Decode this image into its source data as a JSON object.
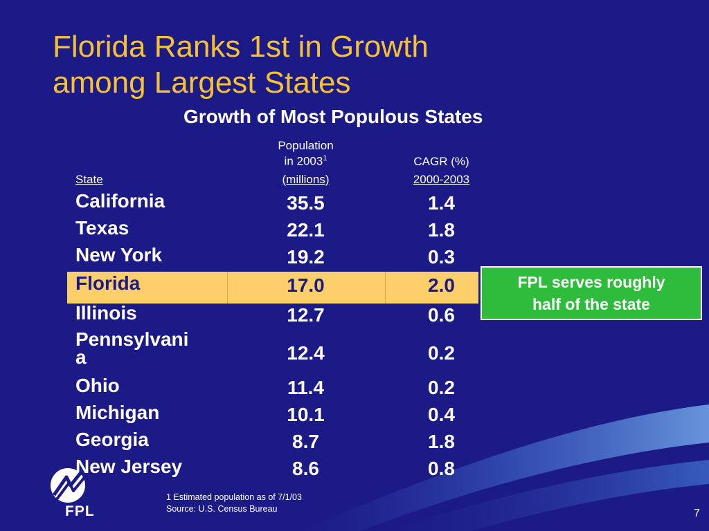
{
  "slide": {
    "title_line1": "Florida Ranks 1st in Growth",
    "title_line2": "among Largest States",
    "subtitle": "Growth of Most Populous States",
    "page_number": "7",
    "logo_text": "FPL"
  },
  "table": {
    "headers": {
      "state": "State",
      "pop_line1": "Population",
      "pop_line2": "in 2003",
      "pop_sup": "1",
      "pop_line3": "(millions)",
      "cagr_line1": "CAGR (%)",
      "cagr_line2": "2000-2003"
    },
    "rows": [
      {
        "state": "California",
        "population": "35.5",
        "cagr": "1.4"
      },
      {
        "state": "Texas",
        "population": "22.1",
        "cagr": "1.8"
      },
      {
        "state": "New York",
        "population": "19.2",
        "cagr": "0.3"
      },
      {
        "state": "Florida",
        "population": "17.0",
        "cagr": "2.0"
      },
      {
        "state": "Illinois",
        "population": "12.7",
        "cagr": "0.6"
      },
      {
        "state_line1": "Pennsylvani",
        "state_line2": "a",
        "population": "12.4",
        "cagr": "0.2"
      },
      {
        "state": "Ohio",
        "population": "11.4",
        "cagr": "0.2"
      },
      {
        "state": "Michigan",
        "population": "10.1",
        "cagr": "0.4"
      },
      {
        "state": "Georgia",
        "population": "8.7",
        "cagr": "1.8"
      },
      {
        "state": "New Jersey",
        "population": "8.6",
        "cagr": "0.8"
      }
    ]
  },
  "callout": {
    "line1": "FPL serves roughly",
    "line2": "half of the state"
  },
  "footnote": {
    "line1": "1 Estimated population as of 7/1/03",
    "line2": "Source: U.S. Census Bureau"
  },
  "colors": {
    "background": "#1c1a86",
    "title": "#f5c233",
    "highlight": "#fdcf6a",
    "callout": "#2fbc3c"
  }
}
